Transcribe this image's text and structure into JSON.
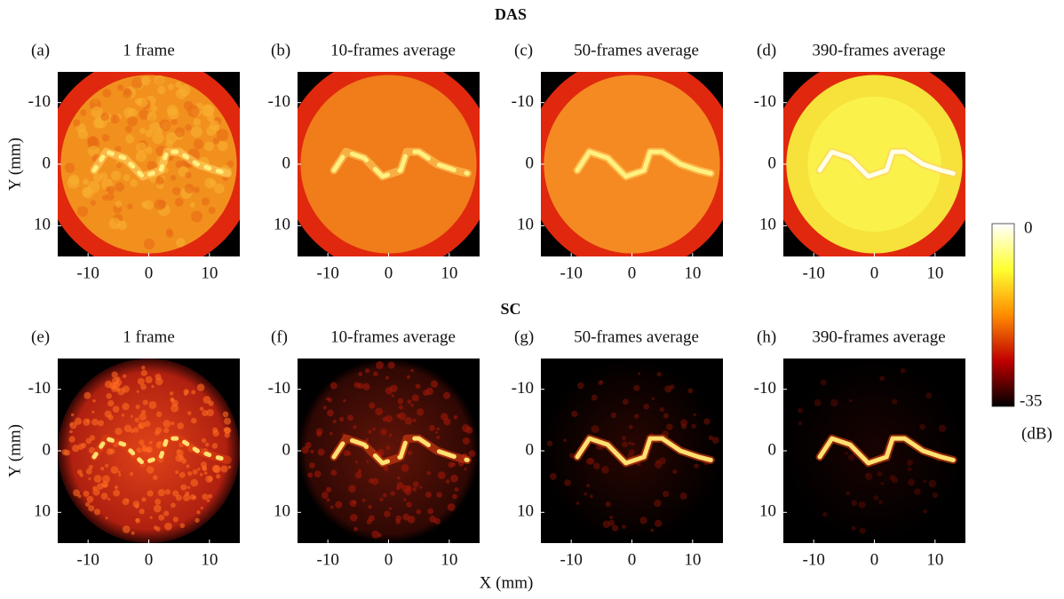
{
  "rows": [
    {
      "title": "DAS",
      "panels": [
        {
          "label": "(a)",
          "title": "1 frame"
        },
        {
          "label": "(b)",
          "title": "10-frames average"
        },
        {
          "label": "(c)",
          "title": "50-frames average"
        },
        {
          "label": "(d)",
          "title": "390-frames average"
        }
      ]
    },
    {
      "title": "SC",
      "panels": [
        {
          "label": "(e)",
          "title": "1 frame"
        },
        {
          "label": "(f)",
          "title": "10-frames average"
        },
        {
          "label": "(g)",
          "title": "50-frames average"
        },
        {
          "label": "(h)",
          "title": "390-frames average"
        }
      ]
    }
  ],
  "axes": {
    "xlabel": "X (mm)",
    "ylabel": "Y (mm)",
    "xticks": [
      "-10",
      "0",
      "10"
    ],
    "yticks": [
      "-10",
      "0",
      "10"
    ]
  },
  "colorbar": {
    "max": "0",
    "min": "-35",
    "unit": "(dB)"
  }
}
